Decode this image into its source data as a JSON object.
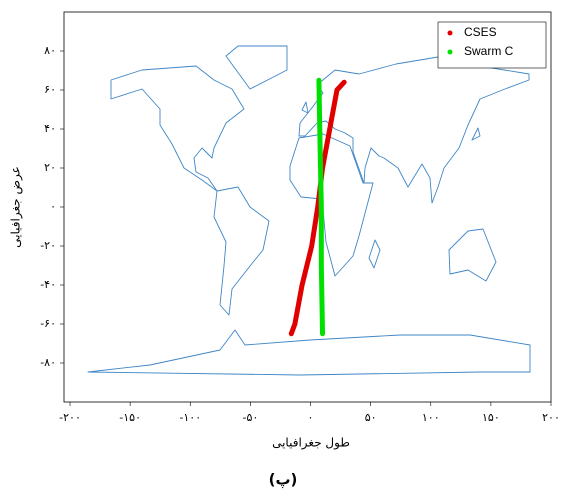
{
  "chart_data": {
    "type": "line",
    "xlabel": "طول جغرافیایی",
    "ylabel": "عرض جغرافیایی",
    "caption": "(پ)",
    "xlim": [
      -205,
      200
    ],
    "ylim": [
      -100,
      100
    ],
    "xticks": [
      {
        "value": -200,
        "label": "-۲۰۰"
      },
      {
        "value": -150,
        "label": "-۱۵۰"
      },
      {
        "value": -100,
        "label": "-۱۰۰"
      },
      {
        "value": -50,
        "label": "-۵۰"
      },
      {
        "value": 0,
        "label": "۰"
      },
      {
        "value": 50,
        "label": "۵۰"
      },
      {
        "value": 100,
        "label": "۱۰۰"
      },
      {
        "value": 150,
        "label": "۱۵۰"
      },
      {
        "value": 200,
        "label": "۲۰۰"
      }
    ],
    "yticks": [
      {
        "value": 80,
        "label": "۸۰"
      },
      {
        "value": 60,
        "label": "۶۰"
      },
      {
        "value": 40,
        "label": "۴۰"
      },
      {
        "value": 20,
        "label": "۲۰"
      },
      {
        "value": 0,
        "label": "۰"
      },
      {
        "value": -20,
        "label": "-۲۰"
      },
      {
        "value": -40,
        "label": "-۴۰"
      },
      {
        "value": -60,
        "label": "-۶۰"
      },
      {
        "value": -80,
        "label": "-۸۰"
      }
    ],
    "legend": "upper right",
    "series": [
      {
        "name": "CSES",
        "color": "#e00000",
        "x": [
          -16,
          -13,
          -7,
          1,
          6,
          10,
          16,
          22,
          28
        ],
        "values": [
          -65,
          -60,
          -40,
          -20,
          0,
          20,
          40,
          60,
          64
        ]
      },
      {
        "name": "Swarm C",
        "color": "#00e000",
        "x": [
          7,
          8,
          9,
          9,
          10
        ],
        "values": [
          65,
          30,
          0,
          -30,
          -65
        ]
      }
    ]
  }
}
